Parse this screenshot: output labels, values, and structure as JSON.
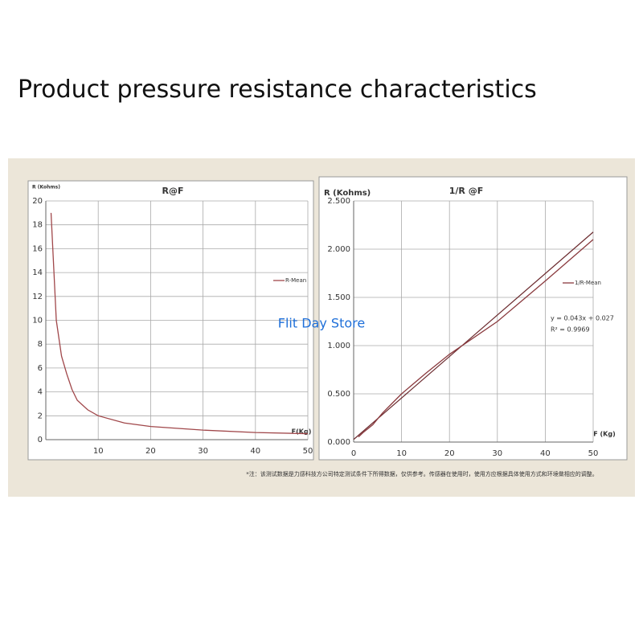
{
  "heading": "Product pressure resistance characteristics",
  "watermark": "Flit Day Store",
  "footnote": "*注：该测试数据是力感科技方公司特定测试条件下所得数据，仅供参考。传感器在使用时，使用方应根据具体使用方式和环境做相应的调整。",
  "chart_data": [
    {
      "type": "line",
      "title": "R@F",
      "y_label": "R (Kohms)",
      "x_label": "F(Kg)",
      "x": [
        1,
        2,
        3,
        4,
        5,
        6,
        8,
        10,
        15,
        20,
        30,
        40,
        50
      ],
      "series": [
        {
          "name": "R-Mean",
          "color": "#a0474a",
          "values": [
            19,
            10,
            7,
            5.5,
            4.2,
            3.3,
            2.5,
            2.0,
            1.4,
            1.1,
            0.8,
            0.6,
            0.5
          ]
        }
      ],
      "xlim": [
        0,
        50
      ],
      "xticks": [
        10,
        20,
        30,
        40,
        50
      ],
      "ylim": [
        0,
        20
      ],
      "yticks": [
        0,
        2,
        4,
        6,
        8,
        10,
        12,
        14,
        16,
        18,
        20
      ],
      "grid": true,
      "legend": "right"
    },
    {
      "type": "line",
      "title": "1/R @F",
      "y_label": "R (Kohms)",
      "x_label": "F (Kg)",
      "x": [
        1,
        2,
        3,
        4,
        5,
        6,
        8,
        10,
        15,
        20,
        30,
        40,
        50
      ],
      "series": [
        {
          "name": "1/R-Mean",
          "color": "#8a3a3e",
          "values": [
            0.053,
            0.1,
            0.14,
            0.18,
            0.24,
            0.3,
            0.4,
            0.5,
            0.71,
            0.91,
            1.25,
            1.67,
            2.1
          ]
        }
      ],
      "trendline": {
        "equation": "y = 0.043x + 0.027",
        "r2": "R² = 0.9969",
        "slope": 0.043,
        "intercept": 0.027,
        "color": "#6b2a2e"
      },
      "xlim": [
        0,
        50
      ],
      "xticks": [
        0,
        10,
        20,
        30,
        40,
        50
      ],
      "ylim": [
        0,
        2.5
      ],
      "yticks": [
        {
          "value": 0,
          "label": "0.000"
        },
        {
          "value": 0.5,
          "label": "0.500"
        },
        {
          "value": 1,
          "label": "1.000"
        },
        {
          "value": 1.5,
          "label": "1.500"
        },
        {
          "value": 2,
          "label": "2.000"
        },
        {
          "value": 2.5,
          "label": "2.500"
        }
      ],
      "grid": true,
      "legend": "right"
    }
  ]
}
